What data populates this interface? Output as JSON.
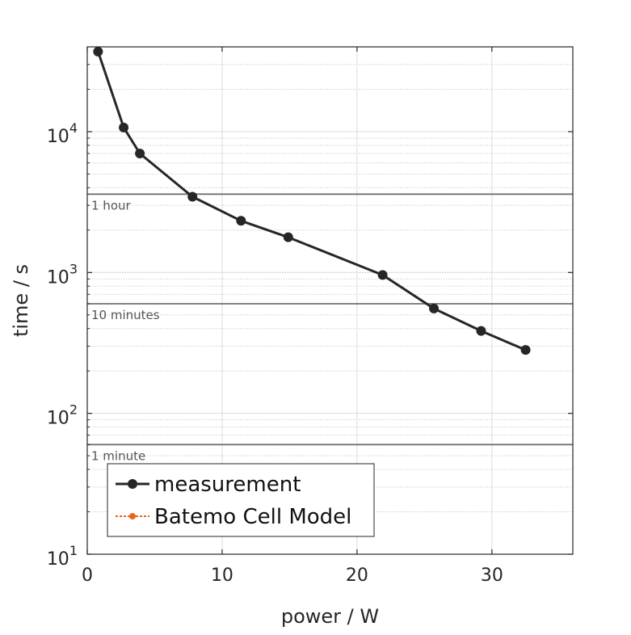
{
  "chart_data": {
    "type": "line",
    "xlabel": "power / W",
    "ylabel": "time / s",
    "xlim": [
      0,
      36
    ],
    "ylim": [
      10,
      40000
    ],
    "yscale": "log",
    "grid": true,
    "xticks": [
      0,
      10,
      20,
      30
    ],
    "yticks": [
      {
        "value": 10,
        "base": "10",
        "exp": "1"
      },
      {
        "value": 100,
        "base": "10",
        "exp": "2"
      },
      {
        "value": 1000,
        "base": "10",
        "exp": "3"
      },
      {
        "value": 10000,
        "base": "10",
        "exp": "4"
      }
    ],
    "series": [
      {
        "name": "measurement",
        "color": "#262626",
        "x": [
          0.8,
          2.7,
          3.9,
          7.8,
          11.4,
          14.9,
          21.9,
          25.7,
          29.2,
          32.5
        ],
        "y": [
          37000,
          10700,
          7000,
          3450,
          2330,
          1780,
          960,
          555,
          385,
          282
        ]
      },
      {
        "name": "Batemo Cell Model",
        "color": "#e8651a",
        "x": [],
        "y": []
      }
    ],
    "reference_lines": [
      {
        "value": 3600,
        "label": "1 hour"
      },
      {
        "value": 600,
        "label": "10 minutes"
      },
      {
        "value": 60,
        "label": "1 minute"
      }
    ],
    "legend": {
      "placement": "bottom-left"
    }
  }
}
